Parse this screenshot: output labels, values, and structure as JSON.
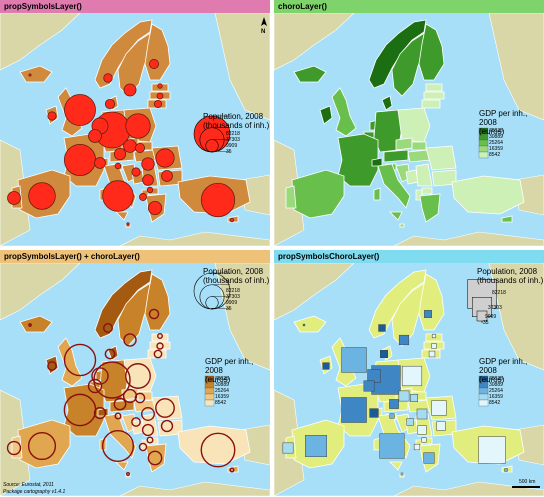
{
  "panels": [
    {
      "title": "propSymbolsLayer()",
      "header_color": "#e07bb0"
    },
    {
      "title": "choroLayer()",
      "header_color": "#7ed36b"
    },
    {
      "title": "propSymbolsLayer() + choroLayer()",
      "header_color": "#efc27a"
    },
    {
      "title": "propSymbolsChoroLayer()",
      "header_color": "#7fdcf0"
    }
  ],
  "north_label": "N",
  "legends": {
    "population": {
      "title_line1": "Population, 2008",
      "title_line2": "(thousands of inh.)",
      "values": [
        "82218",
        "37303",
        "9909",
        "35"
      ]
    },
    "gdp": {
      "title_line1": "GDP per inh., 2008",
      "title_line2": "(euros)",
      "values": [
        "78035",
        "30889",
        "25264",
        "16359",
        "8542"
      ]
    }
  },
  "colors": {
    "sea": "#a6dff7",
    "land_other": "#d9d7a8",
    "orange_country": "#d08a3e",
    "symbol_red": "#ff2a1a",
    "green_scale": [
      "#1b6e12",
      "#3e9a2a",
      "#69bf4b",
      "#9bd97d",
      "#cdf0b6"
    ],
    "brown_scale": [
      "#a55a12",
      "#c8822a",
      "#e0a650",
      "#efc884",
      "#f8e4b8"
    ],
    "blue_scale": [
      "#1c5b9a",
      "#3f86c4",
      "#6bb3e0",
      "#a6dcf2",
      "#e3f6fb"
    ],
    "yellowgreen": "#e1ee7d"
  },
  "source_text": "Source: Eurostat, 2011",
  "package_text": "Package cartography v1.4.1",
  "scale_text": "500 km"
}
